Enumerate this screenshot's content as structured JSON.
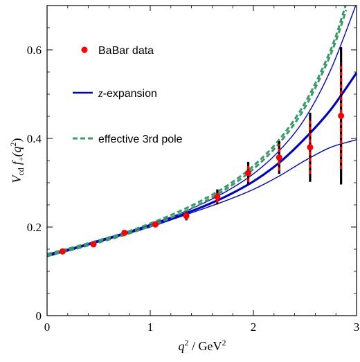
{
  "chart_data": {
    "type": "line",
    "xlabel": {
      "base": "q",
      "sup": "2",
      "rest": " / GeV",
      "sup2": "2"
    },
    "ylabel": {
      "v": "V",
      "vsub": "cd",
      "f": "f",
      "fsub": "+",
      "paren_open": "(q",
      "sup": "2",
      "paren_close": ")"
    },
    "xlim": [
      0,
      3
    ],
    "ylim": [
      0,
      0.7
    ],
    "x_ticks": [
      0,
      1,
      2,
      3
    ],
    "x_tick_labels": [
      "0",
      "1",
      "2",
      "3"
    ],
    "y_ticks": [
      0,
      0.2,
      0.4,
      0.6
    ],
    "y_tick_labels": [
      "0",
      "0.2",
      "0.4",
      "0.6"
    ],
    "legend": {
      "placement": "top-left",
      "entries": [
        {
          "key": "data",
          "label": "BaBar data"
        },
        {
          "key": "zexp",
          "label_italic": "z",
          "label": "-expansion"
        },
        {
          "key": "pole",
          "label": "effective 3rd pole"
        }
      ]
    },
    "colors": {
      "data": "#ff0000",
      "zexp": "#0000cc",
      "pole": "#3a9a6a",
      "stat_bar": "#000000"
    },
    "babar_data": {
      "x": [
        0.15,
        0.45,
        0.75,
        1.05,
        1.35,
        1.65,
        1.95,
        2.25,
        2.55,
        2.85
      ],
      "y": [
        0.145,
        0.161,
        0.187,
        0.206,
        0.225,
        0.268,
        0.322,
        0.357,
        0.38,
        0.451
      ],
      "err_total": [
        0.004,
        0.004,
        0.005,
        0.007,
        0.01,
        0.017,
        0.025,
        0.037,
        0.078,
        0.155
      ],
      "err_stat": [
        0.003,
        0.003,
        0.004,
        0.005,
        0.008,
        0.013,
        0.02,
        0.03,
        0.06,
        0.12
      ]
    },
    "zexpansion": {
      "x": [
        0.0,
        0.25,
        0.5,
        0.75,
        1.0,
        1.25,
        1.5,
        1.75,
        2.0,
        2.25,
        2.5,
        2.75,
        3.0
      ],
      "central": [
        0.136,
        0.151,
        0.168,
        0.185,
        0.203,
        0.223,
        0.245,
        0.271,
        0.303,
        0.345,
        0.4,
        0.465,
        0.548
      ],
      "upper": [
        0.139,
        0.153,
        0.17,
        0.187,
        0.206,
        0.227,
        0.252,
        0.282,
        0.32,
        0.372,
        0.445,
        0.555,
        0.705
      ],
      "lower": [
        0.133,
        0.149,
        0.166,
        0.183,
        0.2,
        0.22,
        0.24,
        0.261,
        0.285,
        0.315,
        0.35,
        0.38,
        0.397
      ]
    },
    "effective_pole": {
      "x": [
        0.0,
        0.25,
        0.5,
        0.75,
        1.0,
        1.25,
        1.5,
        1.75,
        2.0,
        2.25,
        2.5,
        2.75,
        2.9
      ],
      "upper": [
        0.139,
        0.154,
        0.17,
        0.187,
        0.208,
        0.232,
        0.26,
        0.294,
        0.338,
        0.397,
        0.48,
        0.6,
        0.705
      ],
      "lower": [
        0.135,
        0.149,
        0.165,
        0.182,
        0.202,
        0.226,
        0.254,
        0.288,
        0.331,
        0.389,
        0.47,
        0.59,
        0.69
      ]
    }
  }
}
